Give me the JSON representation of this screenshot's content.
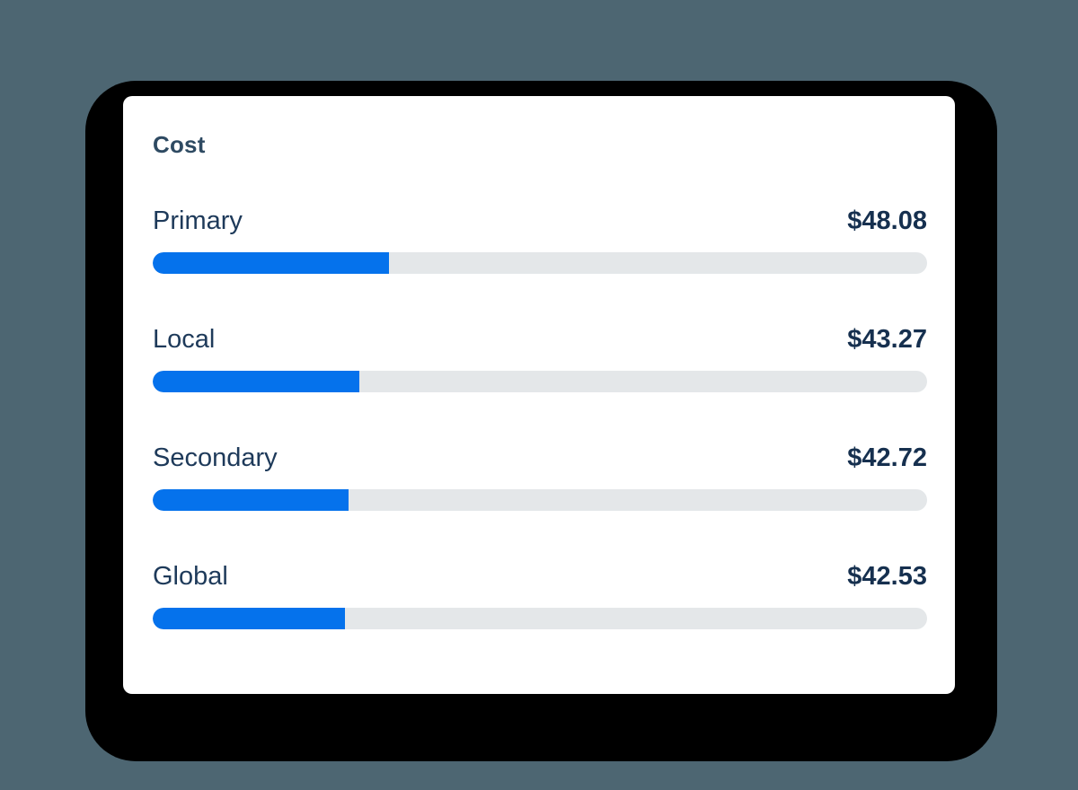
{
  "page": {
    "background_color": "#4d6672",
    "card_background": "#ffffff",
    "shadow_color": "#000000"
  },
  "card": {
    "title": "Cost"
  },
  "colors": {
    "bar_fill": "#0572ec",
    "bar_track": "#e4e7e9",
    "title_text": "#2e4a62",
    "label_text": "#1e3a5a",
    "value_text": "#16304f"
  },
  "chart_data": {
    "type": "bar",
    "orientation": "horizontal",
    "title": "Cost",
    "categories": [
      "Primary",
      "Local",
      "Secondary",
      "Global"
    ],
    "values": [
      48.08,
      43.27,
      42.72,
      42.53
    ],
    "value_labels": [
      "$48.08",
      "$43.27",
      "$42.72",
      "$42.53"
    ],
    "unit": "USD",
    "bar_fill_percents": [
      30.5,
      26.7,
      25.3,
      24.8
    ],
    "legend": false,
    "grid": false
  },
  "rows": [
    {
      "label": "Primary",
      "value": "$48.08",
      "percent": 30.5
    },
    {
      "label": "Local",
      "value": "$43.27",
      "percent": 26.7
    },
    {
      "label": "Secondary",
      "value": "$42.72",
      "percent": 25.3
    },
    {
      "label": "Global",
      "value": "$42.53",
      "percent": 24.8
    }
  ]
}
